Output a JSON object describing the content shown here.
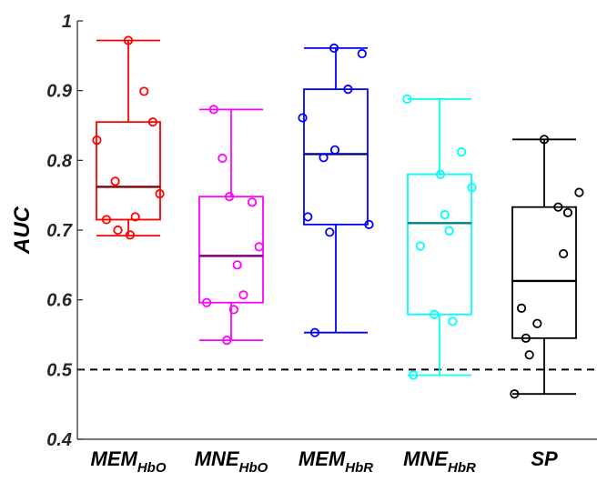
{
  "chart_data": {
    "type": "box",
    "ylabel": "AUC",
    "ylim": [
      0.4,
      1.0
    ],
    "yticks": [
      0.4,
      0.5,
      0.6,
      0.7,
      0.8,
      0.9,
      1.0
    ],
    "ytick_labels": [
      "0.4",
      "0.5",
      "0.6",
      "0.7",
      "0.8",
      "0.9",
      "1"
    ],
    "grid": false,
    "legend": "none",
    "reference_line": {
      "y": 0.5,
      "style": "dashed",
      "color": "#000000"
    },
    "categories": [
      {
        "main": "MEM",
        "sub": "HbO"
      },
      {
        "main": "MNE",
        "sub": "HbO"
      },
      {
        "main": "MEM",
        "sub": "HbR"
      },
      {
        "main": "MNE",
        "sub": "HbR"
      },
      {
        "main": "SP",
        "sub": ""
      }
    ],
    "series": [
      {
        "color": "#ff0000",
        "median_color": "#800000",
        "whisker_low": 0.692,
        "q1": 0.715,
        "median": 0.762,
        "q3": 0.855,
        "whisker_high": 0.972,
        "points": [
          0.972,
          0.899,
          0.855,
          0.829,
          0.77,
          0.752,
          0.719,
          0.715,
          0.7,
          0.693
        ],
        "jitter": [
          0.0,
          0.18,
          0.28,
          -0.36,
          -0.15,
          0.36,
          0.08,
          -0.25,
          -0.12,
          0.02
        ]
      },
      {
        "color": "#ff00ff",
        "median_color": "#800080",
        "whisker_low": 0.542,
        "q1": 0.596,
        "median": 0.663,
        "q3": 0.748,
        "whisker_high": 0.873,
        "points": [
          0.873,
          0.803,
          0.748,
          0.74,
          0.676,
          0.65,
          0.607,
          0.596,
          0.586,
          0.542
        ],
        "jitter": [
          -0.2,
          -0.1,
          -0.02,
          0.24,
          0.32,
          0.07,
          0.14,
          -0.28,
          0.03,
          -0.05
        ]
      },
      {
        "color": "#0000ff",
        "median_color": "#000080",
        "whisker_low": 0.553,
        "q1": 0.708,
        "median": 0.809,
        "q3": 0.902,
        "whisker_high": 0.961,
        "points": [
          0.961,
          0.953,
          0.902,
          0.861,
          0.815,
          0.804,
          0.719,
          0.708,
          0.697,
          0.553
        ],
        "jitter": [
          -0.02,
          0.3,
          0.14,
          -0.38,
          -0.01,
          -0.14,
          -0.32,
          0.38,
          -0.07,
          -0.24
        ]
      },
      {
        "color": "#00ffff",
        "median_color": "#008080",
        "whisker_low": 0.492,
        "q1": 0.579,
        "median": 0.71,
        "q3": 0.78,
        "whisker_high": 0.888,
        "points": [
          0.888,
          0.812,
          0.78,
          0.761,
          0.722,
          0.699,
          0.677,
          0.579,
          0.569,
          0.492
        ],
        "jitter": [
          -0.37,
          0.25,
          0.01,
          0.37,
          0.06,
          0.11,
          -0.22,
          -0.06,
          0.15,
          -0.3
        ]
      },
      {
        "color": "#000000",
        "median_color": "#000000",
        "whisker_low": 0.465,
        "q1": 0.545,
        "median": 0.627,
        "q3": 0.733,
        "whisker_high": 0.83,
        "points": [
          0.83,
          0.754,
          0.733,
          0.725,
          0.666,
          0.588,
          0.566,
          0.545,
          0.521,
          0.465
        ],
        "jitter": [
          0.0,
          0.4,
          0.16,
          0.27,
          0.22,
          -0.26,
          -0.08,
          -0.21,
          -0.17,
          -0.34
        ]
      }
    ]
  }
}
